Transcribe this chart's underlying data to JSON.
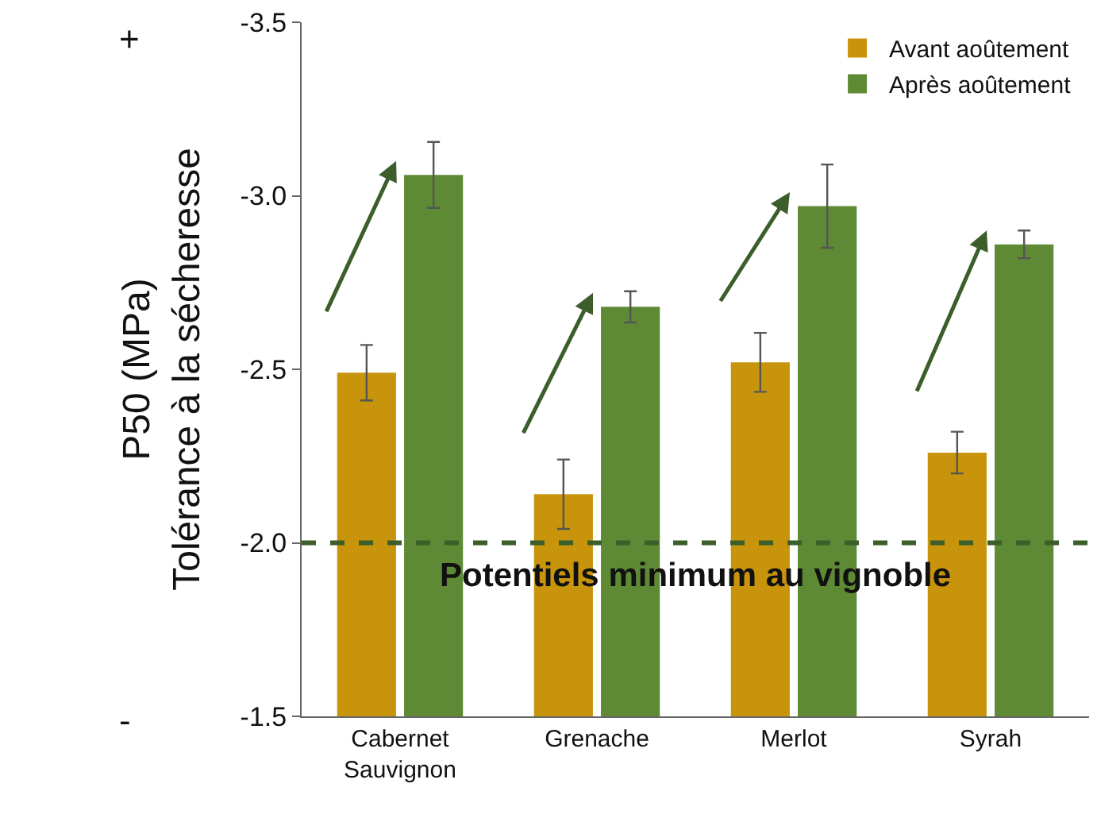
{
  "chart_data": {
    "type": "bar",
    "ylabel": "P50 (MPa)\nTolérance à la sécheresse",
    "categories": [
      "Cabernet\nSauvignon",
      "Grenache",
      "Merlot",
      "Syrah"
    ],
    "series": [
      {
        "name": "Avant aoûtement",
        "color": "#c8940c",
        "values": [
          -2.49,
          -2.14,
          -2.52,
          -2.26
        ],
        "errors": [
          0.08,
          0.1,
          0.085,
          0.06
        ]
      },
      {
        "name": "Après aoûtement",
        "color": "#5f8a35",
        "values": [
          -3.06,
          -2.68,
          -2.97,
          -2.86
        ],
        "errors": [
          0.095,
          0.045,
          0.12,
          0.04
        ]
      }
    ],
    "ylim": [
      -1.5,
      -3.5
    ],
    "yticks": [
      -1.5,
      {
        "value": -2,
        "label": "-2.0"
      },
      -2.5,
      {
        "value": -3,
        "label": "-3.0"
      },
      -3.5
    ],
    "ref_lines": [
      {
        "axis": "y",
        "value": -2.0,
        "label": "Potentiels minimum au vignoble",
        "color": "#3b5e2b",
        "line_style": "dashed"
      }
    ],
    "annotations": [
      "+",
      "-"
    ],
    "grid": false,
    "legend": "top right"
  }
}
